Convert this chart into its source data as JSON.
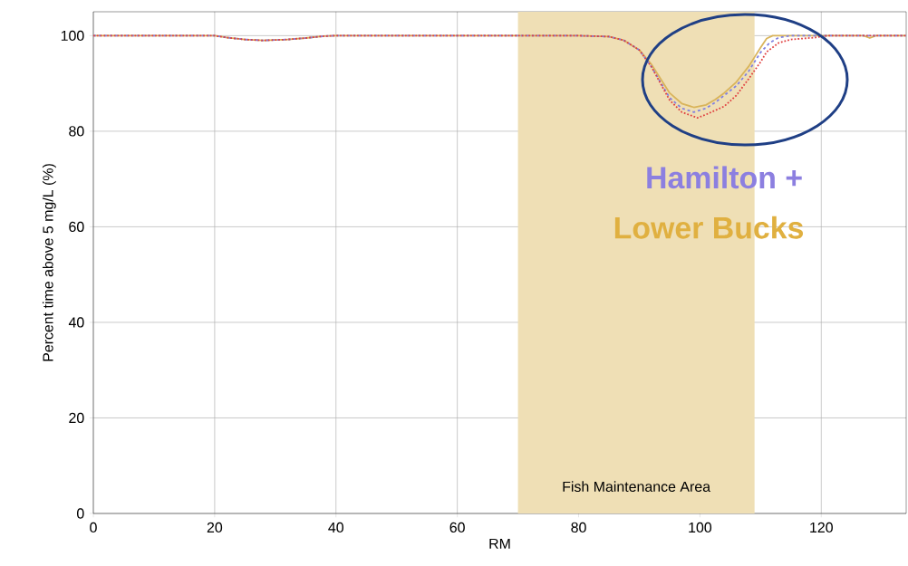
{
  "chart_data": {
    "type": "line",
    "xlabel": "RM",
    "ylabel": "Percent time above 5 mg/L (%)",
    "xlim": [
      0,
      134
    ],
    "ylim": [
      0,
      105
    ],
    "xticks": [
      0,
      20,
      40,
      60,
      80,
      100,
      120
    ],
    "yticks": [
      0,
      20,
      40,
      60,
      80,
      100
    ],
    "grid": true,
    "bands": [
      {
        "axis": "x",
        "from": 70,
        "to": 109,
        "label": "Fish Maintenance Area",
        "color": "#efdfb5"
      }
    ],
    "annotations": [
      "Hamilton +",
      "Lower Bucks"
    ],
    "series": [
      {
        "color": "#d9b45a",
        "line_style": "solid",
        "x": [
          0,
          20,
          22,
          25,
          28,
          32,
          35,
          38,
          40,
          60,
          80,
          85,
          87.5,
          90,
          92,
          95,
          97,
          99,
          101,
          102.5,
          104,
          106,
          108,
          109,
          110,
          111,
          112,
          120,
          127,
          128,
          129,
          134
        ],
        "values": [
          100,
          100,
          99.6,
          99.2,
          99,
          99.2,
          99.5,
          99.9,
          100,
          100,
          100,
          99.8,
          99,
          97,
          94,
          88,
          85.8,
          85,
          85.5,
          86.6,
          88,
          90.3,
          93.5,
          95.5,
          97.5,
          99.4,
          100,
          100,
          100,
          99.5,
          100,
          100
        ]
      },
      {
        "color": "#8080e0",
        "line_style": "dashed",
        "x": [
          0,
          20,
          22,
          25,
          28,
          32,
          35,
          38,
          40,
          60,
          80,
          85,
          87.5,
          90,
          92,
          95,
          97,
          99,
          101,
          102.5,
          104,
          106,
          108,
          110,
          111.5,
          113,
          115,
          134
        ],
        "values": [
          100,
          100,
          99.6,
          99.2,
          99,
          99.2,
          99.5,
          99.9,
          100,
          100,
          100,
          99.8,
          99,
          97,
          93.5,
          87,
          84.8,
          84,
          84.8,
          86,
          87.5,
          89.5,
          92.5,
          96.5,
          98.5,
          99.6,
          100,
          100
        ]
      },
      {
        "color": "#e04040",
        "line_style": "dotted",
        "x": [
          0,
          20,
          22,
          25,
          28,
          32,
          35,
          38,
          40,
          60,
          80,
          85,
          87.5,
          90,
          92,
          95,
          97,
          99.6,
          101,
          104,
          106,
          108,
          110,
          111,
          113,
          115,
          119,
          121,
          134
        ],
        "values": [
          100,
          100,
          99.6,
          99.2,
          99,
          99.2,
          99.5,
          99.9,
          100,
          100,
          100,
          99.8,
          99,
          97,
          93.5,
          86.5,
          84,
          82.8,
          83.5,
          85.2,
          87.5,
          90.9,
          94.5,
          96.6,
          98.5,
          99.2,
          99.6,
          100,
          100
        ]
      }
    ]
  }
}
